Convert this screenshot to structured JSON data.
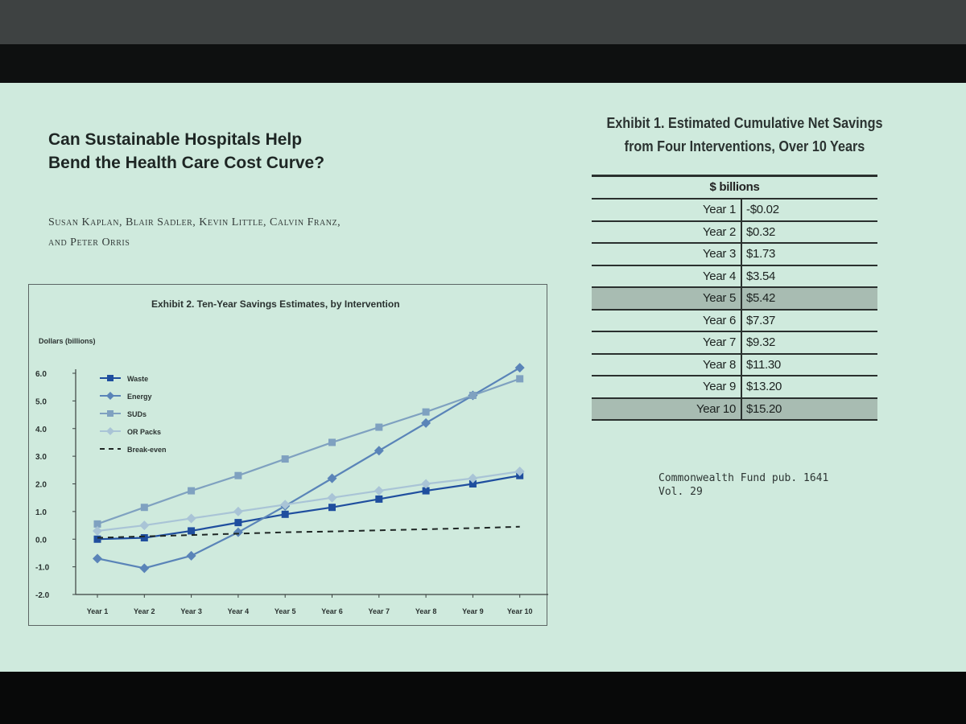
{
  "slide": {
    "title_line1": "Can Sustainable Hospitals Help",
    "title_line2": "Bend the Health Care Cost Curve?",
    "authors_line1": "Susan Kaplan, Blair Sadler, Kevin Little, Calvin Franz,",
    "authors_line2": "and Peter Orris",
    "source_line1": "Commonwealth Fund pub. 1641",
    "source_line2": "Vol. 29"
  },
  "exhibit1": {
    "title_line1": "Exhibit 1. Estimated Cumulative Net Savings",
    "title_line2": "from Four Interventions, Over 10 Years",
    "header": "$ billions",
    "rows": [
      {
        "year": "Year 1",
        "value": "-$0.02",
        "shaded": false
      },
      {
        "year": "Year 2",
        "value": "$0.32",
        "shaded": false
      },
      {
        "year": "Year 3",
        "value": "$1.73",
        "shaded": false
      },
      {
        "year": "Year 4",
        "value": "$3.54",
        "shaded": false
      },
      {
        "year": "Year 5",
        "value": "$5.42",
        "shaded": true
      },
      {
        "year": "Year 6",
        "value": "$7.37",
        "shaded": false
      },
      {
        "year": "Year 7",
        "value": "$9.32",
        "shaded": false
      },
      {
        "year": "Year 8",
        "value": "$11.30",
        "shaded": false
      },
      {
        "year": "Year 9",
        "value": "$13.20",
        "shaded": false
      },
      {
        "year": "Year 10",
        "value": "$15.20",
        "shaded": true
      }
    ]
  },
  "chart_data": {
    "type": "line",
    "title": "Exhibit 2. Ten-Year Savings Estimates, by Intervention",
    "ylabel": "Dollars (billions)",
    "xlabel": "",
    "categories": [
      "Year 1",
      "Year 2",
      "Year 3",
      "Year 4",
      "Year 5",
      "Year 6",
      "Year 7",
      "Year 8",
      "Year 9",
      "Year 10"
    ],
    "yticks": [
      "6.0",
      "5.0",
      "4.0",
      "3.0",
      "2.0",
      "1.0",
      "0.0",
      "-1.0",
      "-2.0"
    ],
    "ylim": [
      -2,
      6
    ],
    "grid": false,
    "legend_position": "top-left",
    "series": [
      {
        "name": "Waste",
        "marker": "square",
        "color": "#1f4e9e",
        "values": [
          0.0,
          0.05,
          0.3,
          0.6,
          0.9,
          1.15,
          1.45,
          1.75,
          2.0,
          2.3
        ]
      },
      {
        "name": "Energy",
        "marker": "diamond",
        "color": "#5a84b8",
        "values": [
          -0.7,
          -1.05,
          -0.6,
          0.25,
          1.2,
          2.2,
          3.2,
          4.2,
          5.2,
          6.2
        ]
      },
      {
        "name": "SUDs",
        "marker": "square",
        "color": "#7fa1c0",
        "values": [
          0.55,
          1.15,
          1.75,
          2.3,
          2.9,
          3.5,
          4.05,
          4.6,
          5.2,
          5.8
        ]
      },
      {
        "name": "OR Packs",
        "marker": "diamond",
        "color": "#a9c4d6",
        "values": [
          0.3,
          0.5,
          0.75,
          1.0,
          1.25,
          1.5,
          1.75,
          2.0,
          2.2,
          2.45
        ]
      },
      {
        "name": "Break-even",
        "marker": "none",
        "dashed": true,
        "color": "#1e2624",
        "values": [
          0.05,
          0.1,
          0.15,
          0.2,
          0.25,
          0.28,
          0.32,
          0.36,
          0.4,
          0.45
        ]
      }
    ]
  }
}
